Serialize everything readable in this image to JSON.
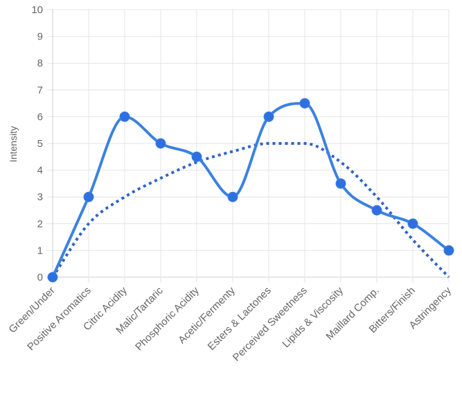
{
  "chart_data": {
    "type": "line",
    "ylabel": "Intensity",
    "xlabel": "",
    "ylim": [
      0,
      10
    ],
    "yticks": [
      0,
      1,
      2,
      3,
      4,
      5,
      6,
      7,
      8,
      9,
      10
    ],
    "grid": true,
    "legend": "none",
    "categories": [
      "Green/Under",
      "Positive Aromatics",
      "Citric Acidity",
      "Malic/Tartaric",
      "Phosphoric Acidity",
      "Acetic/Fermenty",
      "Esters & Lactones",
      "Perceived Sweetness",
      "Lipids & Viscosity",
      "Maillard Comp.",
      "Bitters/Finish",
      "Astringency"
    ],
    "series": [
      {
        "style": "solid-with-markers",
        "color": "#3b82e0",
        "values": [
          0,
          3,
          6,
          5,
          4.5,
          3,
          6,
          6.5,
          3.5,
          2.5,
          2,
          1
        ]
      },
      {
        "style": "dotted",
        "color": "#2f63c9",
        "values": [
          0,
          2,
          3,
          3.7,
          4.3,
          4.7,
          5,
          5,
          4.3,
          3,
          1.4,
          0
        ]
      }
    ]
  }
}
